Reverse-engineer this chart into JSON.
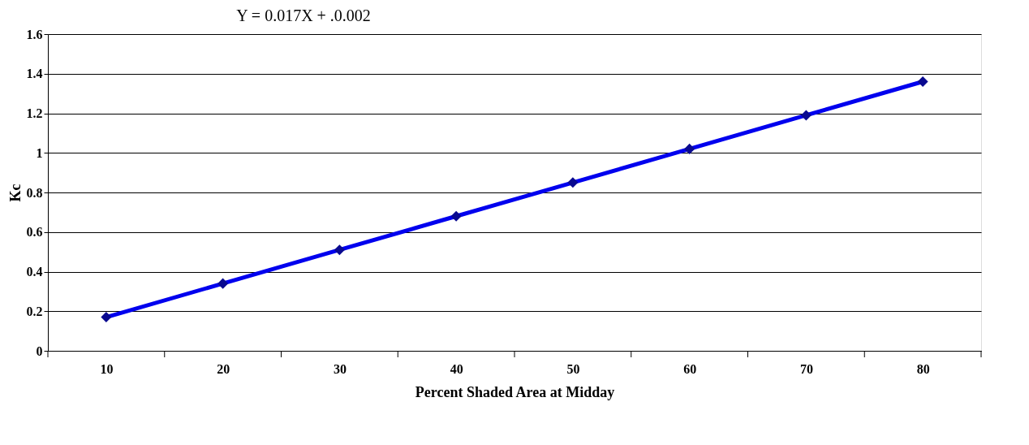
{
  "chart_data": {
    "type": "line",
    "title": "Y = 0.017X + .0.002",
    "xlabel": "Percent Shaded Area at Midday",
    "ylabel": "Kc",
    "categories": [
      "10",
      "20",
      "30",
      "40",
      "50",
      "60",
      "70",
      "80"
    ],
    "series": [
      {
        "color": "#0000ee",
        "values": [
          0.17,
          0.34,
          0.51,
          0.68,
          0.85,
          1.02,
          1.19,
          1.36
        ]
      }
    ],
    "ylim": [
      0,
      1.6
    ],
    "yticks": [
      0,
      0.2,
      0.4,
      0.6,
      0.8,
      1,
      1.2,
      1.4,
      1.6
    ],
    "grid": "y",
    "marker": "diamond",
    "line_style": "solid"
  }
}
